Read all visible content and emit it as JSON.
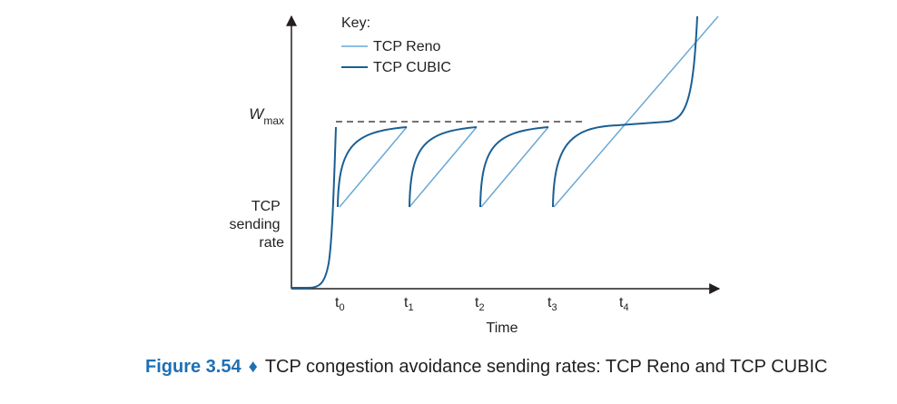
{
  "key": {
    "title": "Key:",
    "items": [
      {
        "label": "TCP Reno",
        "color": "#6aa9d6"
      },
      {
        "label": "TCP CUBIC",
        "color": "#1a5f93"
      }
    ]
  },
  "y_axis": {
    "wmax_main": "W",
    "wmax_sub": "max",
    "label_lines": [
      "TCP",
      "sending",
      "rate"
    ]
  },
  "x_axis": {
    "title": "Time",
    "ticks": [
      {
        "main": "t",
        "sub": "0"
      },
      {
        "main": "t",
        "sub": "1"
      },
      {
        "main": "t",
        "sub": "2"
      },
      {
        "main": "t",
        "sub": "3"
      },
      {
        "main": "t",
        "sub": "4"
      }
    ]
  },
  "caption": {
    "figure_number": "Figure 3.54",
    "separator": "♦",
    "text": "TCP congestion avoidance sending rates: TCP Reno and TCP CUBIC"
  },
  "colors": {
    "reno": "#6aa9d6",
    "cubic": "#1a5f93",
    "axis": "#231f20",
    "caption_accent": "#1f6fb5"
  }
}
